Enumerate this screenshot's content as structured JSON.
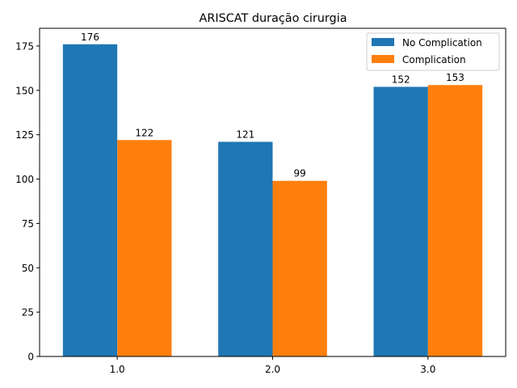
{
  "chart_data": {
    "type": "bar",
    "title": "ARISCAT duração cirurgia",
    "xlabel": "",
    "ylabel": "",
    "categories": [
      "1.0",
      "2.0",
      "3.0"
    ],
    "ylim": [
      0,
      185
    ],
    "yticks": [
      0,
      25,
      50,
      75,
      100,
      125,
      150,
      175
    ],
    "grid": false,
    "legend_position": "top-right",
    "series": [
      {
        "name": "No Complication",
        "color": "#1f77b4",
        "values": [
          176,
          121,
          152
        ]
      },
      {
        "name": "Complication",
        "color": "#ff7f0e",
        "values": [
          122,
          99,
          153
        ]
      }
    ]
  }
}
